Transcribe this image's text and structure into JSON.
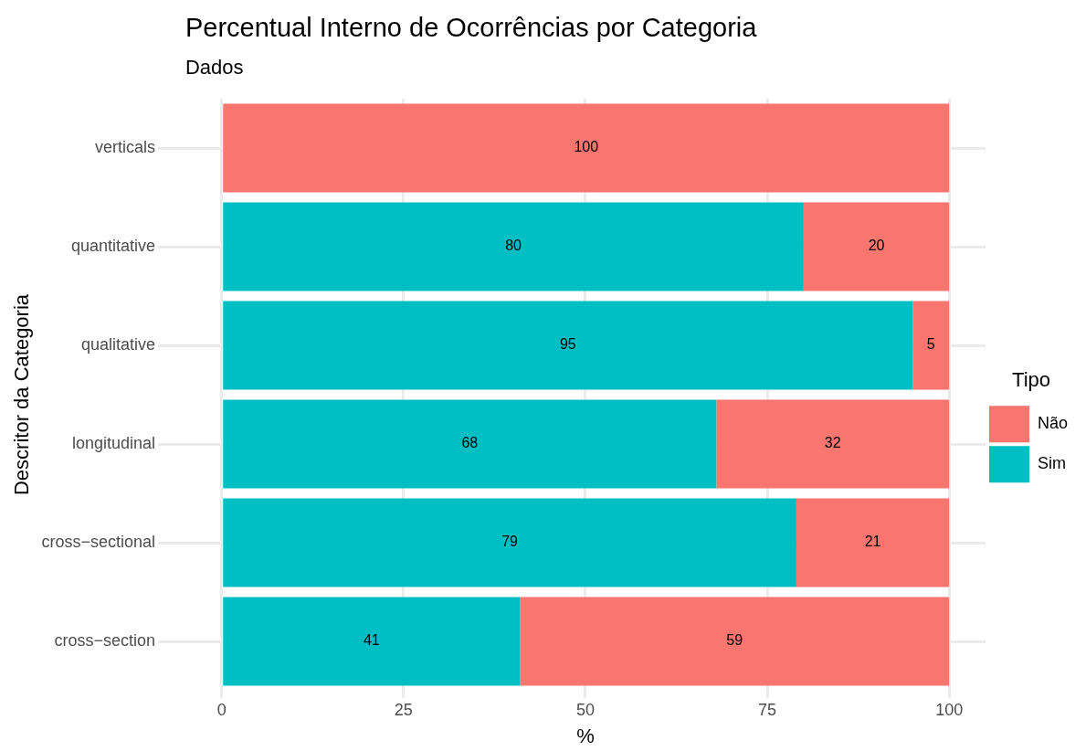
{
  "chart_data": {
    "type": "bar",
    "orientation": "horizontal",
    "stacked": true,
    "title": "Percentual Interno de Ocorrências por Categoria",
    "subtitle": "Dados",
    "xlabel": "%",
    "ylabel": "Descritor da Categoria",
    "legend_title": "Tipo",
    "categories": [
      "verticals",
      "quantitative",
      "qualitative",
      "longitudinal",
      "cross−sectional",
      "cross−section"
    ],
    "series": [
      {
        "name": "Sim",
        "color": "#00bfc4",
        "values": [
          null,
          80,
          95,
          68,
          79,
          41
        ]
      },
      {
        "name": "Não",
        "color": "#f8766d",
        "values": [
          100,
          20,
          5,
          32,
          21,
          59
        ]
      }
    ],
    "xlim": [
      -5,
      105
    ],
    "xticks": [
      0,
      25,
      50,
      75,
      100
    ],
    "grid": true,
    "legend": "right",
    "data_labels": true
  }
}
